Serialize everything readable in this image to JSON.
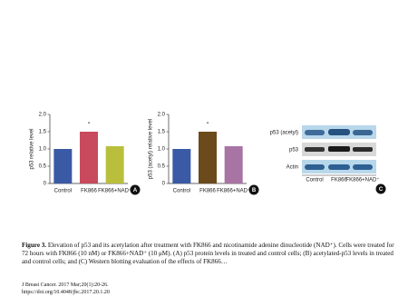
{
  "chart_data": [
    {
      "type": "bar",
      "panel": "A",
      "ylabel": "p53 relative level",
      "annotation": "*",
      "categories": [
        "Control",
        "FK866",
        "FK866+NAD⁺"
      ],
      "values": [
        1.0,
        1.5,
        1.08
      ],
      "colors": [
        "#3b5aa6",
        "#c84a5c",
        "#b9bf3c"
      ],
      "ylim": [
        0,
        2
      ],
      "yticks": [
        0,
        0.5,
        {
          "value": 1,
          "label": "1.0"
        },
        1.5,
        {
          "value": 2,
          "label": "2.0"
        }
      ]
    },
    {
      "type": "bar",
      "panel": "B",
      "ylabel": "p53 (acetyl) relative level",
      "annotation": "*",
      "categories": [
        "Control",
        "FK866",
        "FK866+NAD⁺"
      ],
      "values": [
        1.0,
        1.5,
        1.08
      ],
      "colors": [
        "#3b5aa6",
        "#6b4a1c",
        "#a874a4"
      ],
      "ylim": [
        0,
        2
      ],
      "yticks": [
        0,
        0.5,
        {
          "value": 1,
          "label": "1.0"
        },
        1.5,
        {
          "value": 2,
          "label": "2.0"
        }
      ]
    }
  ],
  "blot": {
    "panel": "C",
    "rows": [
      "p53 (acetyl)",
      "p53",
      "Actin"
    ],
    "lanes": [
      "Control",
      "FK866",
      "FK866+NAD⁺"
    ]
  },
  "caption": {
    "label": "Figure 3.",
    "text": "Elevation of p53 and its acetylation after treatment with FK866 and nicotinamide adenine dinucleotide (NAD⁺). Cells were treated for 72 hours with FK866 (10 nM) or FK866+NAD⁺ (10 μM). (A) p53 protein levels in treated and control cells; (B) acetylated-p53 levels in treated and control cells; and (C) Western blotting evaluation of the effects of FK866…"
  },
  "citation": [
    "J Breast Cancer. 2017 Mar;20(1):20-26.",
    "https://doi.org/10.4048/jbc.2017.20.1.20"
  ]
}
